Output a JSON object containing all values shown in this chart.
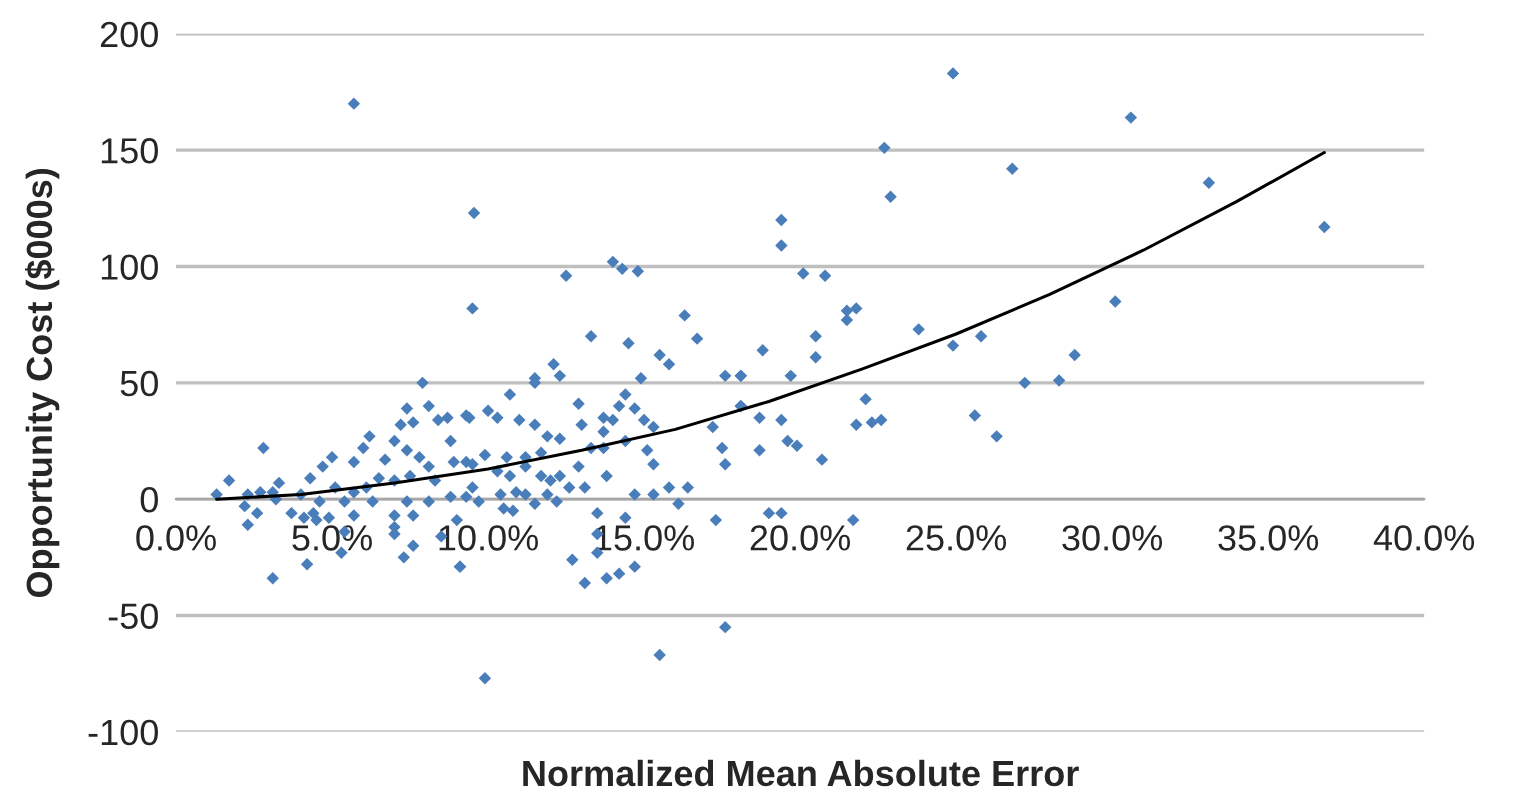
{
  "chart_data": {
    "type": "scatter",
    "xlabel": "Normalized Mean Absolute Error",
    "ylabel": "Opportunity Cost ($000s)",
    "xlim": [
      0,
      40
    ],
    "ylim": [
      -100,
      200
    ],
    "xticks": [
      {
        "value": 0,
        "label": "0.0%"
      },
      {
        "value": 5,
        "label": "5.0%"
      },
      {
        "value": 10,
        "label": "10.0%"
      },
      {
        "value": 15,
        "label": "15.0%"
      },
      {
        "value": 20,
        "label": "20.0%"
      },
      {
        "value": 25,
        "label": "25.0%"
      },
      {
        "value": 30,
        "label": "30.0%"
      },
      {
        "value": 35,
        "label": "35.0%"
      },
      {
        "value": 40,
        "label": "40.0%"
      }
    ],
    "yticks": [
      -100,
      -50,
      0,
      50,
      100,
      150,
      200
    ],
    "grid": "y",
    "legend": false,
    "series": [
      {
        "color": "#4a7ebb",
        "marker": "diamond",
        "x": [
          5.7,
          9.55,
          12.5,
          14.0,
          14.3,
          14.8,
          9.5,
          16.3,
          16.7,
          13.3,
          14.5,
          15.5,
          15.8,
          12.1,
          12.3,
          11.5,
          11.5,
          14.9,
          17.6,
          18.1,
          10.7,
          12.9,
          14.4,
          14.2,
          14.7,
          18.1,
          17.2,
          17.5,
          17.6,
          16.4,
          15.8,
          16.1,
          17.3,
          14.7,
          15.3,
          15.3,
          15.1,
          13.5,
          14.4,
          13.5,
          13.5,
          12.7,
          13.8,
          14.2,
          14.7,
          13.1,
          17.6,
          15.5,
          9.9,
          9.1,
          10.8,
          9.3,
          10.0,
          10.3,
          11.0,
          11.5,
          11.9,
          12.3,
          13.0,
          13.7,
          14.0,
          13.7,
          13.3,
          13.7,
          14.4,
          15.0,
          15.3,
          11.7,
          11.2,
          10.6,
          9.9,
          9.5,
          10.3,
          10.7,
          11.2,
          11.7,
          12.0,
          12.3,
          12.9,
          12.6,
          13.1,
          13.8,
          11.9,
          11.2,
          10.4,
          9.7,
          9.5,
          10.9,
          11.5,
          12.2,
          10.5,
          24.9,
          30.6,
          22.7,
          22.9,
          26.8,
          33.1,
          36.8,
          19.4,
          19.4,
          20.1,
          20.8,
          21.5,
          21.8,
          21.5,
          23.8,
          24.9,
          25.8,
          28.8,
          30.1,
          27.2,
          28.3,
          25.6,
          26.3,
          21.8,
          22.3,
          22.6,
          22.1,
          20.7,
          19.9,
          19.6,
          18.7,
          19.4,
          18.7,
          18.1,
          18.1,
          19.7,
          18.8,
          20.5,
          20.5,
          19.0,
          19.4,
          21.7,
          7.9,
          8.1,
          7.4,
          7.6,
          7.2,
          8.4,
          8.7,
          9.4,
          6.2,
          2.8,
          5.0,
          4.7,
          5.7,
          6.0,
          6.7,
          7.0,
          8.8,
          7.4,
          7.8,
          8.1,
          8.9,
          9.3,
          4.3,
          3.3,
          1.7,
          1.3,
          2.3,
          2.7,
          3.1,
          4.0,
          5.1,
          5.7,
          6.1,
          6.5,
          7.0,
          7.5,
          8.3,
          8.8,
          9.3,
          4.6,
          5.4,
          6.3,
          7.4,
          8.1,
          2.2,
          2.6,
          3.7,
          4.4,
          4.1,
          4.9,
          5.7,
          7.0,
          7.6,
          2.3,
          4.5,
          5.4,
          7.0,
          7.0,
          7.6,
          5.3,
          7.3,
          8.5,
          9.0,
          4.2,
          3.1,
          9.1,
          3.2
        ],
        "values": [
          170,
          123,
          96,
          102,
          99,
          98,
          82,
          79,
          69,
          70,
          67,
          62,
          58,
          58,
          53,
          52,
          50,
          52,
          53,
          53,
          45,
          41,
          45,
          40,
          39,
          40,
          31,
          22,
          15,
          5,
          5,
          -2,
          -9,
          2,
          2,
          15,
          21,
          -6,
          -8,
          -15,
          -23,
          -26,
          -34,
          -32,
          -29,
          -36,
          -55,
          -67,
          -77,
          -29,
          -5,
          36,
          38,
          35,
          34,
          32,
          27,
          26,
          32,
          35,
          34,
          29,
          22,
          22,
          25,
          34,
          31,
          20,
          18,
          18,
          19,
          15,
          12,
          10,
          14,
          10,
          8,
          10,
          14,
          5,
          5,
          10,
          2,
          2,
          2,
          -1,
          5,
          3,
          -2,
          -1,
          -4,
          183,
          164,
          151,
          130,
          142,
          136,
          117,
          120,
          109,
          97,
          96,
          81,
          82,
          77,
          73,
          66,
          70,
          62,
          85,
          50,
          51,
          36,
          27,
          32,
          33,
          34,
          43,
          17,
          23,
          25,
          21,
          34,
          35,
          40,
          53,
          53,
          64,
          70,
          61,
          -6,
          -6,
          -9,
          50,
          40,
          39,
          33,
          32,
          34,
          35,
          35,
          27,
          22,
          18,
          14,
          16,
          22,
          17,
          25,
          25,
          21,
          18,
          14,
          16,
          16,
          9,
          7,
          8,
          2,
          2,
          3,
          3,
          2,
          5,
          3,
          5,
          9,
          8,
          10,
          8,
          1,
          1,
          -1,
          -1,
          -1,
          -1,
          -1,
          -3,
          -6,
          -6,
          -6,
          -8,
          -8,
          -7,
          -7,
          -7,
          -11,
          -9,
          -14,
          -12,
          -15,
          -20,
          -23,
          -25,
          -16,
          -9,
          -28,
          -34,
          -29,
          0
        ]
      },
      {
        "type": "line",
        "color": "#000000",
        "marker": "none",
        "line_style": "solid",
        "x": [
          1.3,
          4,
          7,
          10,
          13,
          16,
          19,
          22,
          25,
          28,
          31,
          34,
          36.8
        ],
        "values": [
          0,
          2,
          7,
          13,
          21,
          30,
          42,
          56,
          71,
          88,
          107,
          128,
          149
        ]
      }
    ]
  }
}
